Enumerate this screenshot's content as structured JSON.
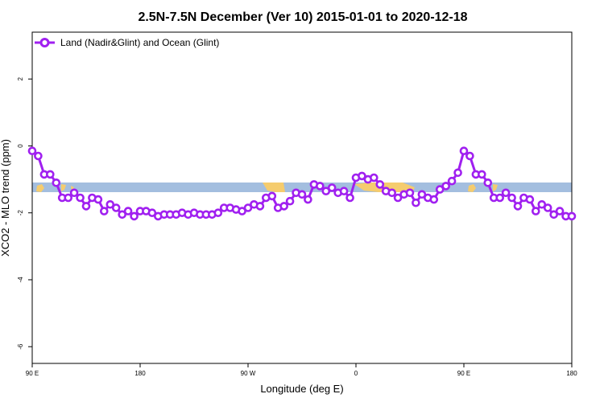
{
  "chart_data": {
    "type": "line",
    "title": "2.5N-7.5N December (Ver 10)   2015-01-01 to 2020-12-18",
    "xlabel": "Longitude (deg E)",
    "ylabel": "XCO2 - MLO trend (ppm)",
    "xlim": [
      90,
      540
    ],
    "ylim": [
      -6.5,
      3.4
    ],
    "x_ticks": [
      {
        "value": 90,
        "label": "90 E"
      },
      {
        "value": 180,
        "label": "180"
      },
      {
        "value": 270,
        "label": "90 W"
      },
      {
        "value": 360,
        "label": "0"
      },
      {
        "value": 450,
        "label": "90 E"
      },
      {
        "value": 540,
        "label": "180"
      }
    ],
    "y_ticks": [
      {
        "value": 2,
        "label": "2"
      },
      {
        "value": 0,
        "label": "0"
      },
      {
        "value": -2,
        "label": "-2"
      },
      {
        "value": -4,
        "label": "-4"
      },
      {
        "value": -6,
        "label": "-6"
      }
    ],
    "legend_position": "top-left",
    "grid": false,
    "series": [
      {
        "name": "Land (Nadir&Glint) and Ocean (Glint)",
        "color": "#a020f0",
        "x": [
          90,
          95,
          100,
          105,
          110,
          115,
          120,
          125,
          130,
          135,
          140,
          145,
          150,
          155,
          160,
          165,
          170,
          175,
          180,
          185,
          190,
          195,
          200,
          205,
          210,
          215,
          220,
          225,
          230,
          235,
          240,
          245,
          250,
          255,
          260,
          265,
          270,
          275,
          280,
          285,
          290,
          295,
          300,
          305,
          310,
          315,
          320,
          325,
          330,
          335,
          340,
          345,
          350,
          355,
          360,
          365,
          370,
          375,
          380,
          385,
          390,
          395,
          400,
          405,
          410,
          415,
          420,
          425,
          430,
          435,
          440,
          445,
          450,
          455,
          460,
          465,
          470,
          475,
          480,
          485,
          490,
          495,
          500,
          505,
          510,
          515,
          520,
          525,
          530,
          535,
          540
        ],
        "y": [
          -0.15,
          -0.3,
          -0.85,
          -0.85,
          -1.1,
          -1.55,
          -1.55,
          -1.4,
          -1.55,
          -1.8,
          -1.55,
          -1.6,
          -1.95,
          -1.75,
          -1.85,
          -2.05,
          -1.95,
          -2.1,
          -1.95,
          -1.95,
          -2.0,
          -2.1,
          -2.05,
          -2.05,
          -2.05,
          -2.0,
          -2.05,
          -2.0,
          -2.05,
          -2.05,
          -2.05,
          -2.0,
          -1.85,
          -1.85,
          -1.9,
          -1.95,
          -1.85,
          -1.75,
          -1.8,
          -1.55,
          -1.5,
          -1.85,
          -1.8,
          -1.65,
          -1.4,
          -1.45,
          -1.6,
          -1.15,
          -1.2,
          -1.35,
          -1.25,
          -1.4,
          -1.35,
          -1.55,
          -0.95,
          -0.9,
          -1.0,
          -0.95,
          -1.15,
          -1.35,
          -1.4,
          -1.55,
          -1.45,
          -1.4,
          -1.7,
          -1.45,
          -1.55,
          -1.6,
          -1.3,
          -1.2,
          -1.05,
          -0.8,
          -0.15,
          -0.3,
          -0.85,
          -0.85,
          -1.1,
          -1.55,
          -1.55,
          -1.4,
          -1.55,
          -1.8,
          -1.55,
          -1.6,
          -1.95,
          -1.75,
          -1.85,
          -2.05,
          -1.95,
          -2.1,
          -2.1
        ]
      }
    ]
  }
}
